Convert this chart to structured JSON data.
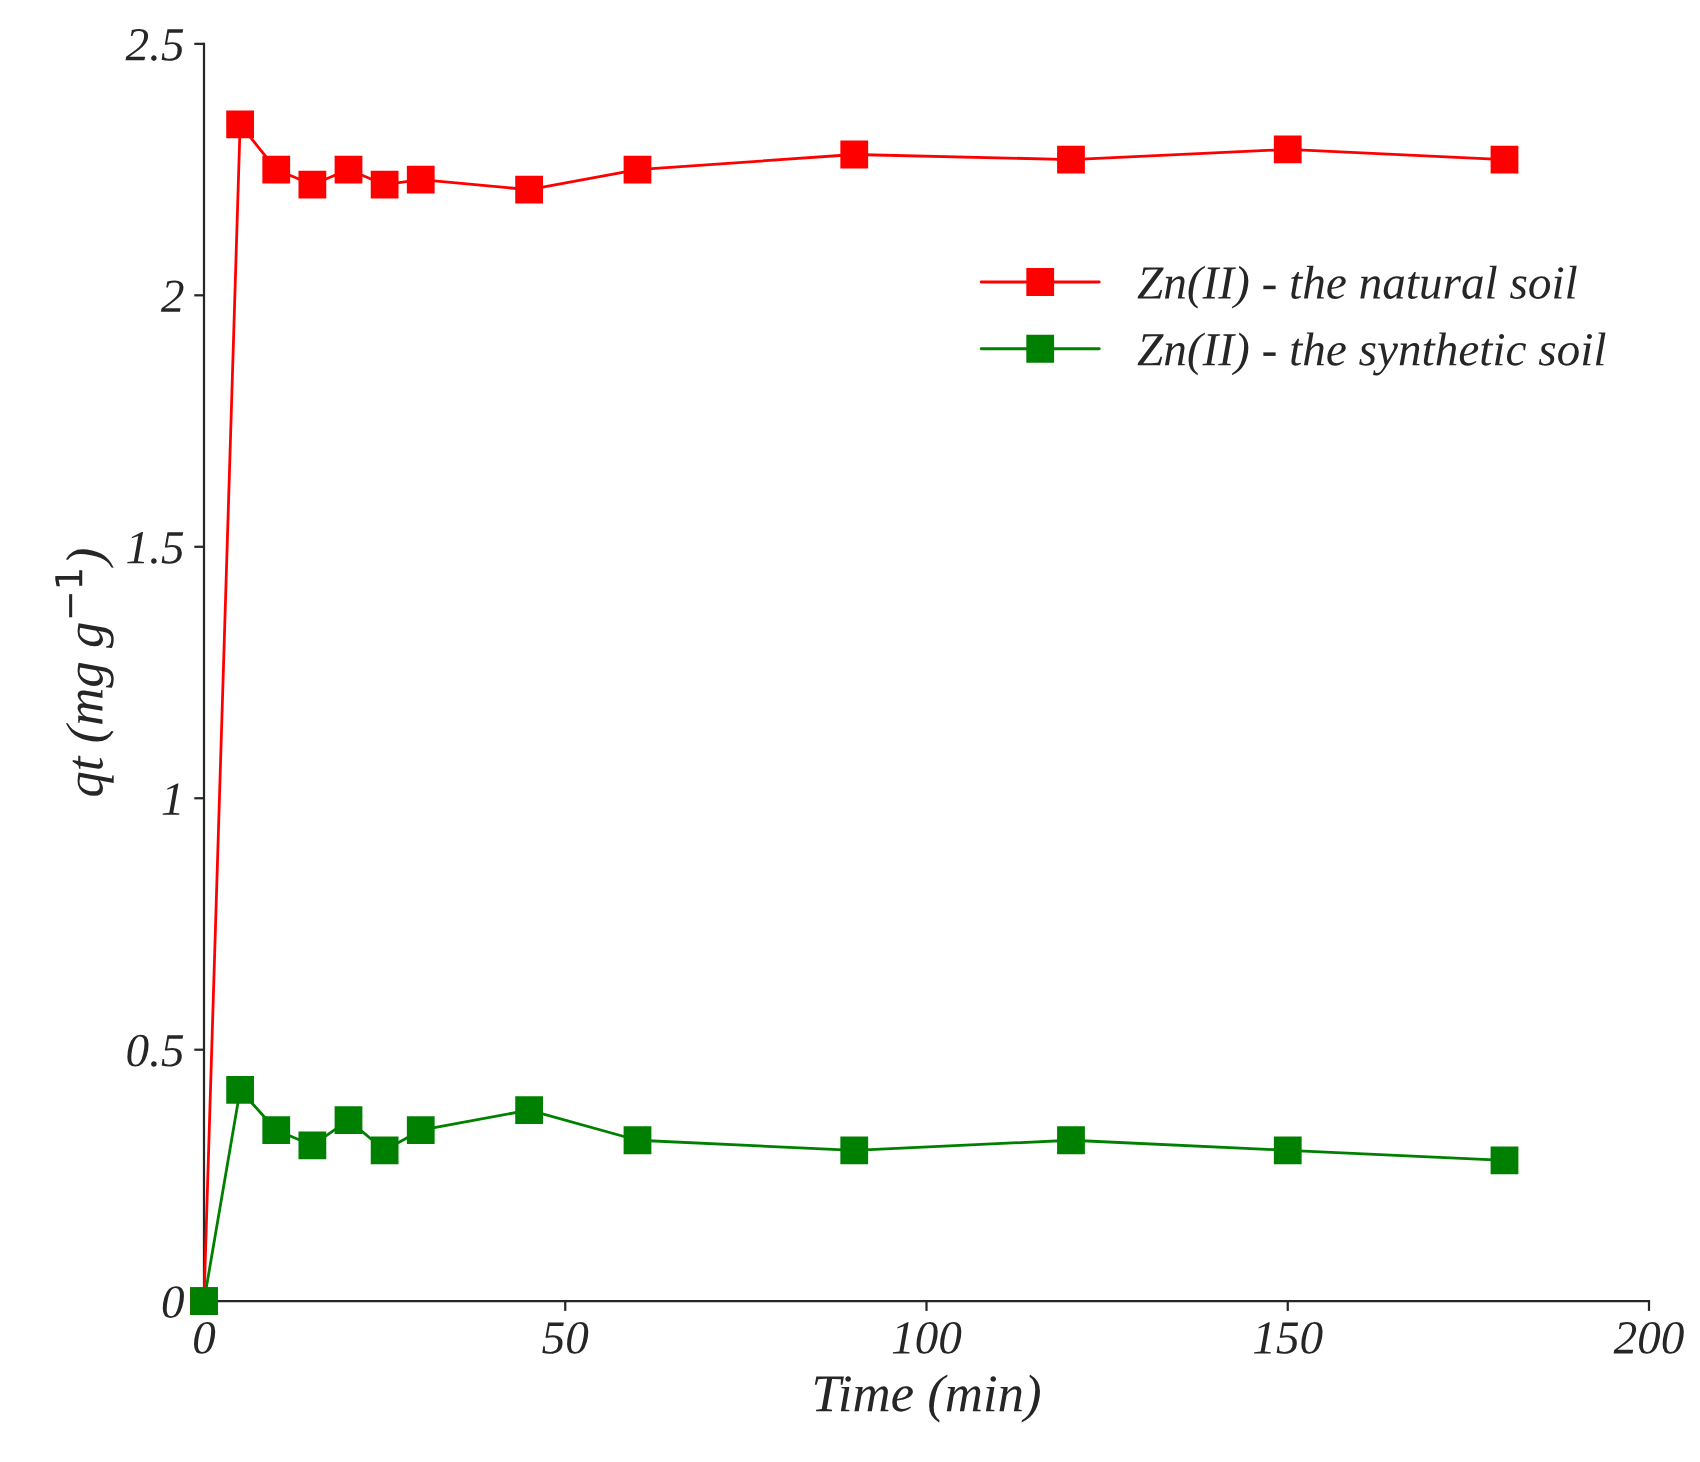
{
  "chart_data": {
    "type": "line",
    "xlabel": "Time (min)",
    "ylabel": "qt (mg g$^{−1}$)",
    "x": [
      0,
      5,
      10,
      15,
      20,
      25,
      30,
      45,
      60,
      90,
      120,
      150,
      180
    ],
    "series": [
      {
        "name": "Zn(II) - the natural soil",
        "color": "#ff0000",
        "values": [
          0,
          2.34,
          2.25,
          2.22,
          2.25,
          2.22,
          2.23,
          2.21,
          2.25,
          2.28,
          2.27,
          2.29,
          2.27
        ]
      },
      {
        "name": "Zn(II) - the synthetic soil",
        "color": "#008000",
        "values": [
          0,
          0.42,
          0.34,
          0.31,
          0.36,
          0.3,
          0.34,
          0.38,
          0.32,
          0.3,
          0.32,
          0.3,
          0.28
        ]
      }
    ],
    "xlim": [
      0,
      200
    ],
    "xticks": [
      0,
      50,
      100,
      150,
      200
    ],
    "ylim": [
      0,
      2.5
    ],
    "yticks": [
      0,
      0.5,
      1,
      1.5,
      2,
      2.5
    ],
    "marker": "square",
    "line_style": "solid",
    "grid": false,
    "legend": "right"
  }
}
